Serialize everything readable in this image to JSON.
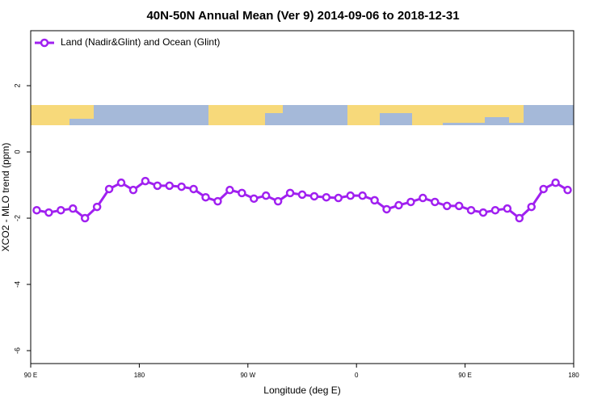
{
  "chart_data": {
    "type": "line",
    "title": "40N-50N Annual Mean (Ver 9)   2014-09-06 to 2018-12-31",
    "x_label": "Longitude (deg E)",
    "y_label": "XCO2 - MLO trend (ppm)",
    "xlim": [
      90,
      540
    ],
    "ylim": [
      -6.39,
      3.66
    ],
    "xticks": [
      {
        "value": 90,
        "label": "90 E"
      },
      {
        "value": 180,
        "label": "180"
      },
      {
        "value": 270,
        "label": "90 W"
      },
      {
        "value": 360,
        "label": "0"
      },
      {
        "value": 450,
        "label": "90 E"
      },
      {
        "value": 540,
        "label": "180"
      }
    ],
    "yticks": [
      -6,
      -4,
      -2,
      0,
      2
    ],
    "grid": false,
    "legend": "top-left",
    "x": [
      95,
      105,
      115,
      125,
      135,
      145,
      155,
      165,
      175,
      185,
      195,
      205,
      215,
      225,
      235,
      245,
      255,
      265,
      275,
      285,
      295,
      305,
      315,
      325,
      335,
      345,
      355,
      365,
      375,
      385,
      395,
      405,
      415,
      425,
      435,
      445,
      455,
      465,
      475,
      485,
      495,
      505,
      515,
      525,
      535
    ],
    "series": [
      {
        "name": "Land (Nadir&Glint) and Ocean (Glint)",
        "color": "#a020f0",
        "values": [
          -1.76,
          -1.83,
          -1.76,
          -1.71,
          -2.0,
          -1.66,
          -1.12,
          -0.93,
          -1.15,
          -0.88,
          -1.02,
          -1.02,
          -1.05,
          -1.12,
          -1.37,
          -1.49,
          -1.15,
          -1.24,
          -1.41,
          -1.32,
          -1.49,
          -1.24,
          -1.29,
          -1.34,
          -1.37,
          -1.39,
          -1.32,
          -1.32,
          -1.46,
          -1.73,
          -1.61,
          -1.51,
          -1.39,
          -1.51,
          -1.63,
          -1.63,
          -1.76,
          -1.83,
          -1.76,
          -1.71,
          -2.0,
          -1.66,
          -1.12,
          -0.93,
          -1.15
        ]
      }
    ]
  }
}
